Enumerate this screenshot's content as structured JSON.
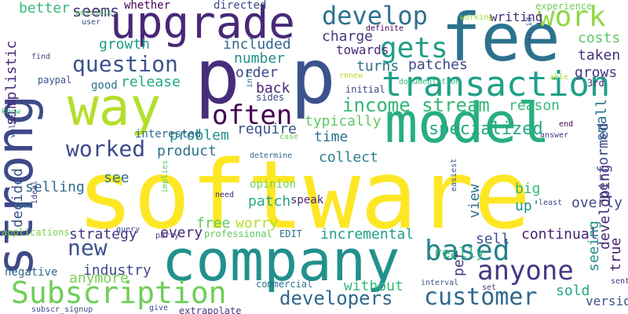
{
  "words": [
    {
      "text": "software",
      "color": "#fde725"
    },
    {
      "text": "p",
      "color": "#472d7b"
    },
    {
      "text": "p",
      "color": "#3b528b"
    },
    {
      "text": "company",
      "color": "#21918c"
    },
    {
      "text": "fee",
      "color": "#2c728e"
    },
    {
      "text": "model",
      "color": "#28ae80"
    },
    {
      "text": "upgrade",
      "color": "#482878"
    },
    {
      "text": "strong",
      "color": "#3e4989"
    },
    {
      "text": "way",
      "color": "#b5de2b"
    },
    {
      "text": "transaction",
      "color": "#1fa088"
    },
    {
      "text": "Subscription",
      "color": "#6ece58"
    },
    {
      "text": "customer",
      "color": "#31688e"
    },
    {
      "text": "anyone",
      "color": "#443983"
    },
    {
      "text": "based",
      "color": "#26828e"
    },
    {
      "text": "develop",
      "color": "#2c728e"
    },
    {
      "text": "work",
      "color": "#90d743"
    },
    {
      "text": "gets",
      "color": "#1f9e89"
    },
    {
      "text": "often",
      "color": "#440154"
    },
    {
      "text": "question",
      "color": "#3b528b"
    },
    {
      "text": "worked",
      "color": "#3e4989"
    },
    {
      "text": "income stream",
      "color": "#35b779"
    },
    {
      "text": "developers",
      "color": "#31688e"
    },
    {
      "text": "specialized",
      "color": "#22a884"
    },
    {
      "text": "new",
      "color": "#3b528b"
    },
    {
      "text": "seems",
      "color": "#472d7b"
    },
    {
      "text": "better",
      "color": "#35b779"
    },
    {
      "text": "charge",
      "color": "#443983"
    },
    {
      "text": "growth",
      "color": "#1f9e89"
    },
    {
      "text": "included",
      "color": "#31688e"
    },
    {
      "text": "release",
      "color": "#22a884"
    },
    {
      "text": "number",
      "color": "#21918c"
    },
    {
      "text": "order",
      "color": "#3e4989"
    },
    {
      "text": "back",
      "color": "#482878"
    },
    {
      "text": "turns",
      "color": "#2c728e"
    },
    {
      "text": "patches",
      "color": "#3e4989"
    },
    {
      "text": "towards",
      "color": "#482878"
    },
    {
      "text": "writing",
      "color": "#482878"
    },
    {
      "text": "costs",
      "color": "#5ec962"
    },
    {
      "text": "taken",
      "color": "#472d7b"
    },
    {
      "text": "grows",
      "color": "#443983"
    },
    {
      "text": "reason",
      "color": "#35b779"
    },
    {
      "text": "typically",
      "color": "#5ec962"
    },
    {
      "text": "time",
      "color": "#2c728e"
    },
    {
      "text": "require",
      "color": "#3b528b"
    },
    {
      "text": "problem",
      "color": "#21918c"
    },
    {
      "text": "interested",
      "color": "#31688e"
    },
    {
      "text": "product",
      "color": "#2c728e"
    },
    {
      "text": "collect",
      "color": "#26828e"
    },
    {
      "text": "decided",
      "color": "#3b528b"
    },
    {
      "text": "selling",
      "color": "#31688e"
    },
    {
      "text": "see",
      "color": "#2c728e"
    },
    {
      "text": "opinion",
      "color": "#7ad151"
    },
    {
      "text": "patch",
      "color": "#22a884"
    },
    {
      "text": "speak",
      "color": "#482878"
    },
    {
      "text": "big",
      "color": "#35b779"
    },
    {
      "text": "view",
      "color": "#2c728e"
    },
    {
      "text": "up'",
      "color": "#21918c"
    },
    {
      "text": "overly",
      "color": "#3e4989"
    },
    {
      "text": "free",
      "color": "#5ec962"
    },
    {
      "text": "worry",
      "color": "#b5de2b"
    },
    {
      "text": "strategy",
      "color": "#443983"
    },
    {
      "text": "every",
      "color": "#482878"
    },
    {
      "text": "EDIT",
      "color": "#2c728e"
    },
    {
      "text": "incremental",
      "color": "#1fa088"
    },
    {
      "text": "sell",
      "color": "#3b528b"
    },
    {
      "text": "continual",
      "color": "#481f70"
    },
    {
      "text": "really",
      "color": "#35b779"
    },
    {
      "text": "industry",
      "color": "#3e4989"
    },
    {
      "text": "anymore",
      "color": "#7ad151"
    },
    {
      "text": "negative",
      "color": "#31688e"
    },
    {
      "text": "without",
      "color": "#35b779"
    },
    {
      "text": "sold",
      "color": "#22a884"
    },
    {
      "text": "version",
      "color": "#3b528b"
    },
    {
      "text": "small",
      "color": "#2c728e"
    },
    {
      "text": "performed",
      "color": "#3e4989"
    },
    {
      "text": "developing",
      "color": "#482878"
    },
    {
      "text": "seeing",
      "color": "#21918c"
    },
    {
      "text": "true",
      "color": "#481f70"
    },
    {
      "text": "per",
      "color": "#443983"
    },
    {
      "text": "simplistic",
      "color": "#482878"
    },
    {
      "text": "whether",
      "color": "#440154"
    },
    {
      "text": "directed",
      "color": "#3e4989"
    },
    {
      "text": "possible",
      "color": "#5ec962"
    },
    {
      "text": "user",
      "color": "#3e4989"
    },
    {
      "text": "experience",
      "color": "#6ece58"
    },
    {
      "text": "definite",
      "color": "#440154"
    },
    {
      "text": "working",
      "color": "#a0da39"
    },
    {
      "text": "lkn_id",
      "color": "#3b528b"
    },
    {
      "text": "find",
      "color": "#3e4989"
    },
    {
      "text": "paypal",
      "color": "#3b528b"
    },
    {
      "text": "good",
      "color": "#2c728e"
    },
    {
      "text": "info",
      "color": "#31688e"
    },
    {
      "text": "sides",
      "color": "#3e4989"
    },
    {
      "text": "initial",
      "color": "#3e4989"
    },
    {
      "text": "documentation",
      "color": "#35b779"
    },
    {
      "text": "renew",
      "color": "#b5de2b"
    },
    {
      "text": "able",
      "color": "#a0da39"
    },
    {
      "text": "3rd",
      "color": "#472d7b"
    },
    {
      "text": "know",
      "color": "#35b779"
    },
    {
      "text": "end",
      "color": "#440154"
    },
    {
      "text": "answer",
      "color": "#443983"
    },
    {
      "text": "case",
      "color": "#6ece58"
    },
    {
      "text": "determine",
      "color": "#31688e"
    },
    {
      "text": "value",
      "color": "#3e4989"
    },
    {
      "text": "easiest",
      "color": "#3b528b"
    },
    {
      "text": "need",
      "color": "#472d7b"
    },
    {
      "text": "implies",
      "color": "#5ec962"
    },
    {
      "text": "least",
      "color": "#3e4989"
    },
    {
      "text": "ideal",
      "color": "#443983"
    },
    {
      "text": "send",
      "color": "#2c728e"
    },
    {
      "text": "applications",
      "color": "#7ad151"
    },
    {
      "text": "professional",
      "color": "#5ec962"
    },
    {
      "text": "query",
      "color": "#3e4989"
    },
    {
      "text": "party",
      "color": "#443983"
    },
    {
      "text": "commercial",
      "color": "#2c728e"
    },
    {
      "text": "interval",
      "color": "#3b528b"
    },
    {
      "text": "set",
      "color": "#443983"
    },
    {
      "text": "sent",
      "color": "#443983"
    },
    {
      "text": "subscr_signup",
      "color": "#3e4989"
    },
    {
      "text": "give",
      "color": "#3b528b"
    },
    {
      "text": "extrapolate",
      "color": "#443983"
    }
  ]
}
